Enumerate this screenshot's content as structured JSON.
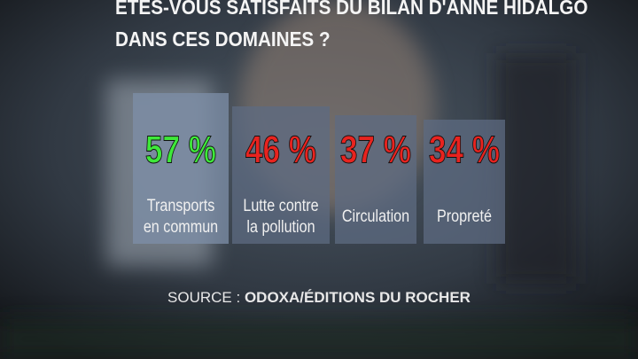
{
  "title_lines": [
    "ÊTES-VOUS SATISFAITS DU BILAN D'ANNE HIDALGO",
    "DANS CES DOMAINES ?"
  ],
  "cards": [
    {
      "value_label": "57 %",
      "color": "#3ee83a",
      "label_lines": [
        "Transports",
        "en commun"
      ]
    },
    {
      "value_label": "46 %",
      "color": "#e8231f",
      "label_lines": [
        "Lutte contre",
        "la pollution"
      ]
    },
    {
      "value_label": "37 %",
      "color": "#e8231f",
      "label_lines": [
        "Circulation"
      ]
    },
    {
      "value_label": "34 %",
      "color": "#e8231f",
      "label_lines": [
        "Propreté"
      ]
    }
  ],
  "source_prefix": "SOURCE :",
  "source": "ODOXA/ÉDITIONS DU ROCHER"
}
